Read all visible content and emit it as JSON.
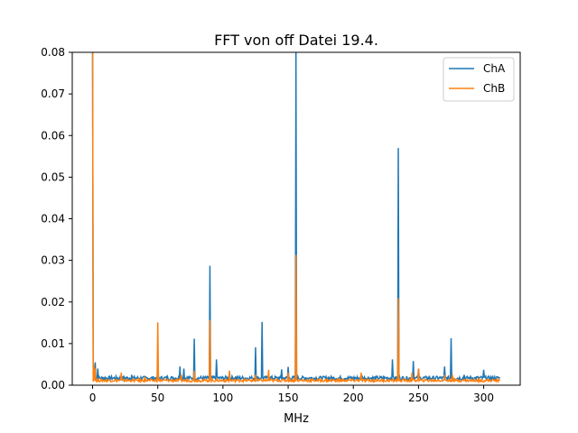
{
  "chart_data": {
    "type": "line",
    "title": "FFT von off Datei 19.4.",
    "xlabel": "MHz",
    "ylabel": "",
    "xlim": [
      -15.6,
      328
    ],
    "ylim": [
      0,
      0.08
    ],
    "xticks": [
      0,
      50,
      100,
      150,
      200,
      250,
      300
    ],
    "xtick_labels": [
      "0",
      "50",
      "100",
      "150",
      "200",
      "250",
      "300"
    ],
    "yticks": [
      0.0,
      0.01,
      0.02,
      0.03,
      0.04,
      0.05,
      0.06,
      0.07,
      0.08
    ],
    "ytick_labels": [
      "0.00",
      "0.01",
      "0.02",
      "0.03",
      "0.04",
      "0.05",
      "0.06",
      "0.07",
      "0.08"
    ],
    "grid": false,
    "legend": "top-right",
    "series": [
      {
        "name": "ChA",
        "color": "#1f77b4",
        "baseline": 0.0018,
        "peaks": [
          [
            0,
            0.08
          ],
          [
            2,
            0.0055
          ],
          [
            4,
            0.004
          ],
          [
            30,
            0.0025
          ],
          [
            67,
            0.0045
          ],
          [
            70,
            0.004
          ],
          [
            78,
            0.0112
          ],
          [
            90,
            0.0287
          ],
          [
            95,
            0.0062
          ],
          [
            105,
            0.0025
          ],
          [
            125,
            0.0091
          ],
          [
            130,
            0.0152
          ],
          [
            145,
            0.0038
          ],
          [
            150,
            0.0044
          ],
          [
            156,
            0.08
          ],
          [
            230,
            0.0062
          ],
          [
            234.4,
            0.057
          ],
          [
            246,
            0.0058
          ],
          [
            250,
            0.004
          ],
          [
            270,
            0.0045
          ],
          [
            275,
            0.0113
          ],
          [
            285,
            0.0025
          ],
          [
            300,
            0.0037
          ]
        ]
      },
      {
        "name": "ChB",
        "color": "#ff7f0e",
        "baseline": 0.0012,
        "peaks": [
          [
            0,
            0.08
          ],
          [
            1,
            0.005
          ],
          [
            2,
            0.004
          ],
          [
            22,
            0.003
          ],
          [
            40,
            0.002
          ],
          [
            50,
            0.0151
          ],
          [
            68,
            0.0025
          ],
          [
            78,
            0.0035
          ],
          [
            90,
            0.0157
          ],
          [
            105,
            0.0035
          ],
          [
            125,
            0.0025
          ],
          [
            135,
            0.0037
          ],
          [
            150,
            0.003
          ],
          [
            156,
            0.0313
          ],
          [
            206,
            0.003
          ],
          [
            234.4,
            0.0209
          ],
          [
            245,
            0.003
          ],
          [
            250,
            0.004
          ],
          [
            270,
            0.0025
          ],
          [
            276,
            0.0025
          ]
        ]
      }
    ]
  }
}
